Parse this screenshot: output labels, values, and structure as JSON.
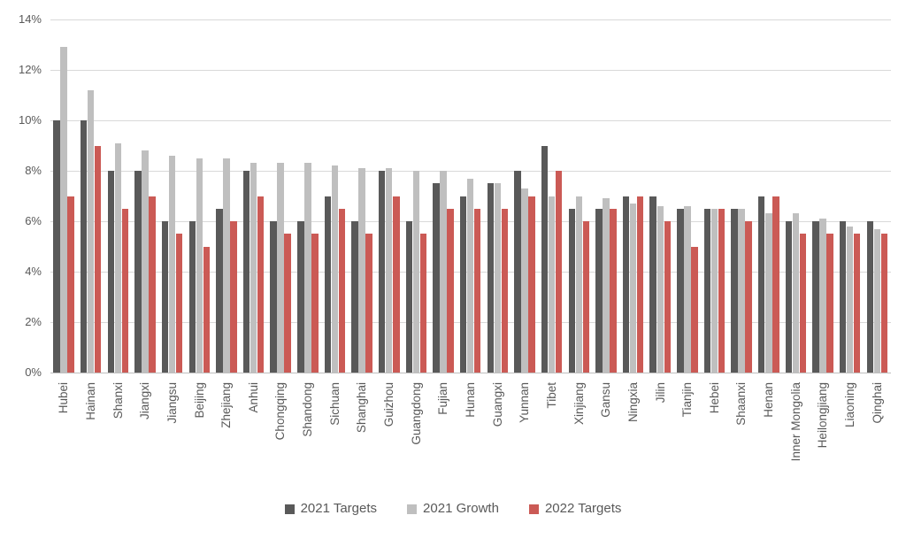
{
  "chart_data": {
    "type": "bar",
    "title": "",
    "xlabel": "",
    "ylabel": "",
    "ylim": [
      0,
      14
    ],
    "ytick_step": 2,
    "ytick_labels": [
      "0%",
      "2%",
      "4%",
      "6%",
      "8%",
      "10%",
      "12%",
      "14%"
    ],
    "grid": true,
    "legend_position": "bottom",
    "categories": [
      "Hubei",
      "Hainan",
      "Shanxi",
      "Jiangxi",
      "Jiangsu",
      "Beijing",
      "Zhejiang",
      "Anhui",
      "Chongqing",
      "Shandong",
      "Sichuan",
      "Shanghai",
      "Guizhou",
      "Guangdong",
      "Fujian",
      "Hunan",
      "Guangxi",
      "Yunnan",
      "Tibet",
      "Xinjiang",
      "Gansu",
      "Ningxia",
      "Jilin",
      "Tianjin",
      "Hebei",
      "Shaanxi",
      "Henan",
      "Inner Mongolia",
      "Heilongjiang",
      "Liaoning",
      "Qinghai"
    ],
    "series": [
      {
        "name": "2021 Targets",
        "color": "#595959",
        "values": [
          10,
          10,
          8,
          8,
          6,
          6,
          6.5,
          8,
          6,
          6,
          7,
          6,
          8,
          6,
          7.5,
          7,
          7.5,
          8,
          9,
          6.5,
          6.5,
          7,
          7,
          6.5,
          6.5,
          6.5,
          7,
          6,
          6,
          6,
          6
        ]
      },
      {
        "name": "2021 Growth",
        "color": "#bfbfbf",
        "values": [
          12.9,
          11.2,
          9.1,
          8.8,
          8.6,
          8.5,
          8.5,
          8.3,
          8.3,
          8.3,
          8.2,
          8.1,
          8.1,
          8,
          8,
          7.7,
          7.5,
          7.3,
          7,
          7,
          6.9,
          6.7,
          6.6,
          6.6,
          6.5,
          6.5,
          6.3,
          6.3,
          6.1,
          5.8,
          5.7
        ]
      },
      {
        "name": "2022 Targets",
        "color": "#cb5a55",
        "values": [
          7,
          9,
          6.5,
          7,
          5.5,
          5,
          6,
          7,
          5.5,
          5.5,
          6.5,
          5.5,
          7,
          5.5,
          6.5,
          6.5,
          6.5,
          7,
          8,
          6,
          6.5,
          7,
          6,
          5,
          6.5,
          6,
          7,
          5.5,
          5.5,
          5.5,
          5.5
        ]
      }
    ],
    "colors": {
      "gridline": "#d9d9d9",
      "axis_line": "#bfbfbf",
      "tick_text": "#595959",
      "legend_text": "#595959",
      "background": "#ffffff"
    }
  }
}
